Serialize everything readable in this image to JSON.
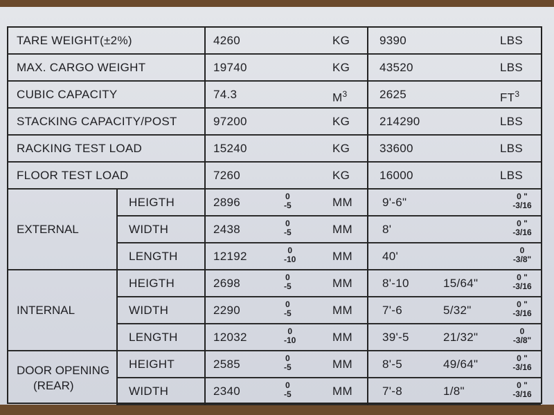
{
  "simple_rows": [
    {
      "label": "TARE WEIGHT(±2%)",
      "metric_value": "4260",
      "metric_unit": "KG",
      "imperial_value": "9390",
      "imperial_unit": "LBS"
    },
    {
      "label": "MAX. CARGO WEIGHT",
      "metric_value": "19740",
      "metric_unit": "KG",
      "imperial_value": "43520",
      "imperial_unit": "LBS"
    },
    {
      "label": "CUBIC CAPACITY",
      "metric_value": "74.3",
      "metric_unit": "M",
      "metric_unit_sup": "3",
      "imperial_value": "2625",
      "imperial_unit": "FT",
      "imperial_unit_sup": "3"
    },
    {
      "label": "STACKING CAPACITY/POST",
      "metric_value": "97200",
      "metric_unit": "KG",
      "imperial_value": "214290",
      "imperial_unit": "LBS"
    },
    {
      "label": "RACKING TEST LOAD",
      "metric_value": "15240",
      "metric_unit": "KG",
      "imperial_value": "33600",
      "imperial_unit": "LBS"
    },
    {
      "label": "FLOOR TEST LOAD",
      "metric_value": "7260",
      "metric_unit": "KG",
      "imperial_value": "16000",
      "imperial_unit": "LBS"
    }
  ],
  "groups": [
    {
      "name": "EXTERNAL",
      "rows": [
        {
          "dim": "HEIGTH",
          "value": "2896",
          "tol_up": "0",
          "tol_low": "-5",
          "unit": "MM",
          "ft": "9'-6\"",
          "inch": "",
          "tol_in_up": "0 \"",
          "tol_in_low": "-3/16"
        },
        {
          "dim": "WIDTH",
          "value": "2438",
          "tol_up": "0",
          "tol_low": "-5",
          "unit": "MM",
          "ft": "8'",
          "inch": "",
          "tol_in_up": "0 \"",
          "tol_in_low": "-3/16"
        },
        {
          "dim": "LENGTH",
          "value": "12192",
          "tol_up": "0",
          "tol_low": "-10",
          "unit": "MM",
          "ft": "40'",
          "inch": "",
          "tol_in_up": "0",
          "tol_in_low": "-3/8\""
        }
      ]
    },
    {
      "name": "INTERNAL",
      "rows": [
        {
          "dim": "HEIGTH",
          "value": "2698",
          "tol_up": "0",
          "tol_low": "-5",
          "unit": "MM",
          "ft": "8'-10",
          "inch": "15/64\"",
          "tol_in_up": "0 \"",
          "tol_in_low": "-3/16"
        },
        {
          "dim": "WIDTH",
          "value": "2290",
          "tol_up": "0",
          "tol_low": "-5",
          "unit": "MM",
          "ft": "7'-6",
          "inch": "5/32\"",
          "tol_in_up": "0 \"",
          "tol_in_low": "-3/16"
        },
        {
          "dim": "LENGTH",
          "value": "12032",
          "tol_up": "0",
          "tol_low": "-10",
          "unit": "MM",
          "ft": "39'-5",
          "inch": "21/32\"",
          "tol_in_up": "0",
          "tol_in_low": "-3/8\""
        }
      ]
    },
    {
      "name": "DOOR OPENING (REAR)",
      "name_line1": "DOOR OPENING",
      "name_line2": "(REAR)",
      "rows": [
        {
          "dim": "HEIGHT",
          "value": "2585",
          "tol_up": "0",
          "tol_low": "-5",
          "unit": "MM",
          "ft": "8'-5",
          "inch": "49/64\"",
          "tol_in_up": "0 \"",
          "tol_in_low": "-3/16"
        },
        {
          "dim": "WIDTH",
          "value": "2340",
          "tol_up": "0",
          "tol_low": "-5",
          "unit": "MM",
          "ft": "7'-8",
          "inch": "1/8\"",
          "tol_in_up": "0 \"",
          "tol_in_low": "-3/16"
        }
      ]
    }
  ]
}
